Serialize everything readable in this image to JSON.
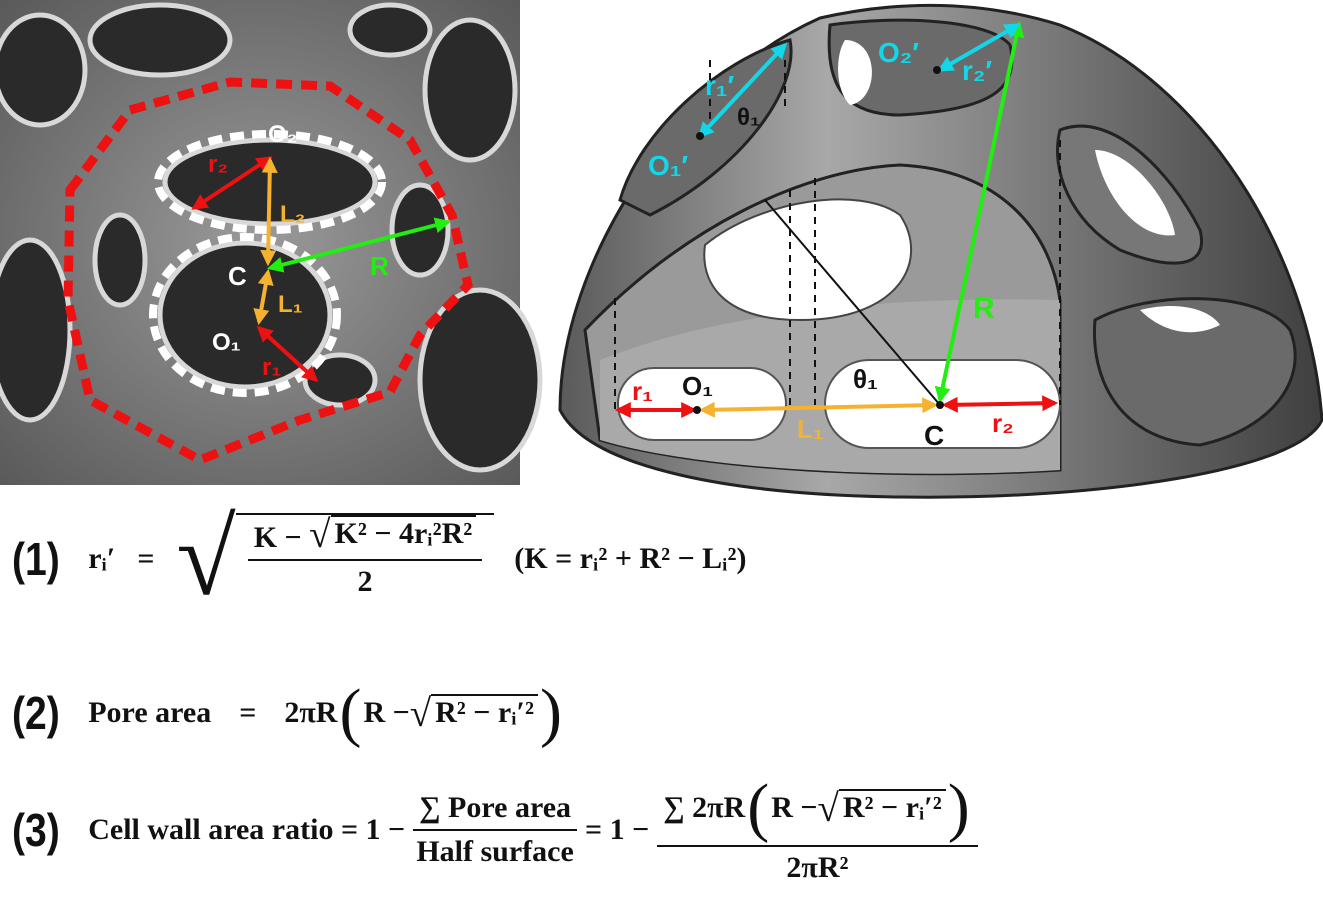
{
  "left_panel": {
    "labels": {
      "O2": "O₂",
      "C": "C",
      "O1": "O₁",
      "r1": "r₁",
      "r2": "r₂",
      "L1": "L₁",
      "L2": "L₂",
      "R": "R"
    }
  },
  "right_panel": {
    "labels": {
      "O1p": "O₁′",
      "r1p": "r₁′",
      "theta_top": "θ₁",
      "O2p": "O₂′",
      "r2p": "r₂′",
      "R": "R",
      "theta": "θ₁",
      "r1": "r₁",
      "O1": "O₁",
      "L1": "L₁",
      "C": "C",
      "r2": "r₂"
    }
  },
  "colors": {
    "red": "#ee1111",
    "white": "#ffffff",
    "orange": "#f5b230",
    "green": "#22ee11",
    "cyan": "#11d8e8"
  },
  "equations": {
    "eq1": {
      "number": "(1)",
      "lhs": "rᵢ′",
      "eq": "=",
      "num_a": "K − ",
      "num_sqrt": "K² − 4rᵢ²R²",
      "den": "2",
      "aside": "(K = rᵢ² + R² − Lᵢ²)"
    },
    "eq2": {
      "number": "(2)",
      "lhs": "Pore area",
      "eq": "=",
      "pre": "2πR",
      "in_a": "R − ",
      "in_sqrt": "R² − rᵢ′²"
    },
    "eq3": {
      "number": "(3)",
      "lhs": "Cell wall area ratio = 1 −",
      "f1_num": "∑ Pore area",
      "f1_den": "Half surface",
      "eq_b": "= 1 −",
      "f2_num_pre": "∑ 2πR",
      "f2_in_a": "R − ",
      "f2_in_sqrt": "R² − rᵢ′²",
      "f2_den": "2πR²"
    }
  }
}
